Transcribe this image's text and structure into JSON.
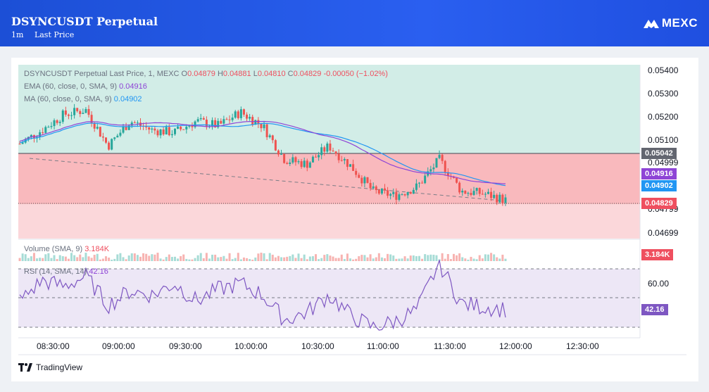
{
  "header": {
    "title": "DSYNCUSDT Perpetual",
    "interval": "1m",
    "price_type": "Last Price",
    "brand": "MEXC",
    "brand_icon": "mexc-logo-icon"
  },
  "legend": {
    "title": "DSYNCUSDT Perpetual Last Price, 1, MEXC",
    "o_label": "O",
    "o_value": "0.04879",
    "h_label": "H",
    "h_value": "0.04881",
    "l_label": "L",
    "l_value": "0.04810",
    "c_label": "C",
    "c_value": "0.04829",
    "change": "-0.00050 (−1.02%)",
    "ema_label": "EMA (60, close, 0, SMA, 9)",
    "ema_value": "0.04916",
    "ma_label": "MA (60, close, 0, SMA, 9)",
    "ma_value": "0.04902",
    "volume_label": "Volume (SMA, 9)",
    "volume_value": "3.184K",
    "rsi_label": "RSI (14, SMA, 14)",
    "rsi_value": "42.16"
  },
  "price_axis": [
    "0.05400",
    "0.05300",
    "0.05200",
    "0.05100",
    "0.04999",
    "0.04799",
    "0.04699"
  ],
  "price_tags": {
    "level": "0.05042",
    "ema": "0.04916",
    "ma": "0.04902",
    "last": "0.04829",
    "volume": "3.184K",
    "rsi": "42.16"
  },
  "rsi_axis": [
    "60.00"
  ],
  "time_axis": [
    "08:30:00",
    "09:00:00",
    "09:30:00",
    "10:00:00",
    "10:30:00",
    "11:00:00",
    "11:30:00",
    "12:00:00",
    "12:30:00"
  ],
  "footer": {
    "brand": "TradingView",
    "icon": "tradingview-logo-icon"
  },
  "colors": {
    "up": "#26a69a",
    "down": "#ef5350",
    "ema": "#8e44d6",
    "ma": "#2196f3",
    "header": "#2a5ff0",
    "rsi": "#7e57c2"
  },
  "chart_data": {
    "type": "candlestick",
    "symbol": "DSYNCUSDT Perpetual",
    "interval": "1",
    "ohlc_last": {
      "open": 0.04879,
      "high": 0.04881,
      "low": 0.0481,
      "close": 0.04829
    },
    "ylim": [
      0.0466,
      0.0543
    ],
    "close_series": {
      "x": [
        "08:20",
        "08:30",
        "08:40",
        "08:50",
        "09:00",
        "09:10",
        "09:20",
        "09:30",
        "09:40",
        "09:50",
        "10:00",
        "10:10",
        "10:20",
        "10:30",
        "10:40",
        "10:50",
        "11:00",
        "11:10",
        "11:20",
        "11:30",
        "11:40",
        "11:50",
        "11:55"
      ],
      "values": [
        0.0508,
        0.0514,
        0.0521,
        0.0523,
        0.0507,
        0.0518,
        0.0514,
        0.0513,
        0.0518,
        0.0516,
        0.0522,
        0.0516,
        0.0501,
        0.0499,
        0.0507,
        0.0498,
        0.0487,
        0.0485,
        0.0489,
        0.0501,
        0.0487,
        0.0486,
        0.0483
      ]
    },
    "ema_value": 0.04916,
    "ma_value": 0.04902,
    "horizontal_level": 0.05042,
    "volume_value": "3.184K",
    "rsi": {
      "ylim": [
        20,
        80
      ],
      "bands": [
        30,
        50,
        70
      ],
      "x": [
        "08:20",
        "08:30",
        "08:40",
        "08:50",
        "09:00",
        "09:10",
        "09:20",
        "09:30",
        "09:40",
        "09:50",
        "10:00",
        "10:10",
        "10:20",
        "10:30",
        "10:40",
        "10:50",
        "11:00",
        "11:10",
        "11:20",
        "11:30",
        "11:40",
        "11:50",
        "11:55"
      ],
      "values": [
        48,
        62,
        58,
        65,
        45,
        55,
        52,
        60,
        48,
        56,
        60,
        52,
        35,
        40,
        52,
        38,
        30,
        34,
        42,
        74,
        46,
        44,
        42.16
      ]
    }
  }
}
